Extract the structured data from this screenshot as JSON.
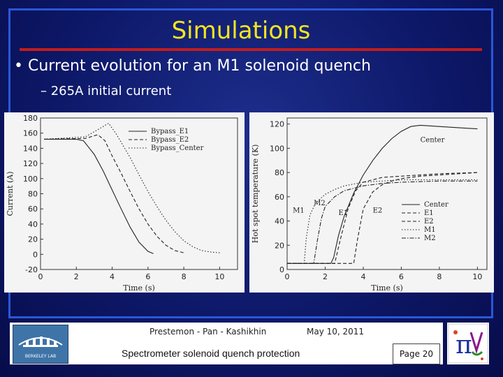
{
  "slide": {
    "title": "Simulations",
    "bullet1": "Current evolution for an M1 solenoid quench",
    "bullet2": "– 265A initial current",
    "bullet_glyph": "•"
  },
  "footer": {
    "authors": "Prestemon - Pan - Kashikhin",
    "date": "May 10, 2011",
    "subtitle": "Spectrometer solenoid quench protection",
    "page": "Page 20",
    "logo_icon": "berkeley-lab-logo-icon",
    "mice_icon": "mice-pi-logo-icon",
    "logo_text": "BERKELEY LAB",
    "mice_logo_text": "π"
  },
  "chart_data": [
    {
      "type": "line",
      "xlabel": "Time (s)",
      "ylabel": "Current (A)",
      "xlim": [
        0,
        11
      ],
      "ylim": [
        -20,
        180
      ],
      "xticks": [
        0,
        2,
        4,
        6,
        8,
        10
      ],
      "yticks": [
        -20,
        0,
        20,
        40,
        60,
        80,
        100,
        120,
        140,
        160,
        180
      ],
      "legend_position": "top-right",
      "series": [
        {
          "name": "Bypass_E1",
          "dash": "solid",
          "x": [
            0.2,
            2.0,
            2.4,
            3.0,
            3.5,
            4.0,
            4.5,
            5.0,
            5.5,
            6.0,
            6.3
          ],
          "y": [
            152,
            152,
            150,
            132,
            110,
            85,
            60,
            36,
            16,
            4,
            1
          ]
        },
        {
          "name": "Bypass_E2",
          "dash": "dashed",
          "x": [
            0.2,
            2.5,
            3.2,
            3.6,
            4.0,
            4.5,
            5.0,
            5.5,
            6.0,
            6.5,
            7.0,
            7.5,
            8.0
          ],
          "y": [
            152,
            153,
            158,
            150,
            130,
            107,
            83,
            60,
            40,
            24,
            12,
            5,
            2
          ]
        },
        {
          "name": "Bypass_Center",
          "dash": "dotted",
          "x": [
            0.2,
            2.5,
            3.3,
            3.8,
            4.2,
            5.0,
            5.5,
            6.0,
            6.5,
            7.0,
            7.5,
            8.0,
            8.5,
            9.0,
            9.5,
            10.0
          ],
          "y": [
            152,
            155,
            166,
            173,
            160,
            128,
            105,
            83,
            63,
            45,
            30,
            18,
            10,
            5,
            3,
            2
          ]
        }
      ]
    },
    {
      "type": "line",
      "xlabel": "Time (s)",
      "ylabel": "Hot spot temperature (K)",
      "xlim": [
        0,
        10.5
      ],
      "ylim": [
        0,
        125
      ],
      "xticks": [
        0,
        2,
        4,
        6,
        8,
        10
      ],
      "yticks": [
        0,
        20,
        40,
        60,
        80,
        100,
        120
      ],
      "legend_position": "right",
      "annotations": [
        "Center",
        "M1",
        "M2",
        "E1",
        "E2"
      ],
      "series": [
        {
          "name": "Center",
          "dash": "solid",
          "x": [
            0,
            2.3,
            2.45,
            2.7,
            3.0,
            3.5,
            4.0,
            4.5,
            5.0,
            5.5,
            6.0,
            6.5,
            7.0,
            8.0,
            9.0,
            10.0
          ],
          "y": [
            5,
            5,
            10,
            28,
            44,
            63,
            78,
            90,
            100,
            108,
            114,
            118,
            119,
            118,
            117,
            116
          ]
        },
        {
          "name": "E1",
          "dash": "dashed",
          "x": [
            0,
            2.5,
            2.8,
            3.2,
            3.6,
            4.0,
            4.5,
            5.0,
            6.0,
            8.0,
            10.0
          ],
          "y": [
            5,
            5,
            25,
            50,
            65,
            72,
            74,
            76,
            77,
            79,
            80
          ]
        },
        {
          "name": "E2",
          "dash": "dashed",
          "x": [
            0,
            3.5,
            3.7,
            4.0,
            4.5,
            5.0,
            5.5,
            6.0,
            7.0,
            8.0,
            10.0
          ],
          "y": [
            5,
            5,
            25,
            50,
            64,
            70,
            73,
            75,
            77,
            78,
            80
          ]
        },
        {
          "name": "M1",
          "dash": "dotted",
          "x": [
            0,
            0.9,
            1.0,
            1.2,
            1.5,
            2.0,
            2.5,
            3.0,
            4.0,
            5.0,
            6.0,
            7.0,
            8.0,
            10.0
          ],
          "y": [
            5,
            5,
            25,
            45,
            55,
            62,
            66,
            69,
            72,
            73,
            74,
            74,
            74,
            74
          ]
        },
        {
          "name": "M2",
          "dash": "dashdot",
          "x": [
            0,
            1.4,
            1.6,
            1.8,
            2.0,
            2.5,
            3.0,
            4.0,
            5.0,
            6.0,
            8.0,
            10.0
          ],
          "y": [
            5,
            5,
            25,
            42,
            52,
            60,
            65,
            69,
            71,
            72,
            73,
            73
          ]
        }
      ]
    }
  ]
}
